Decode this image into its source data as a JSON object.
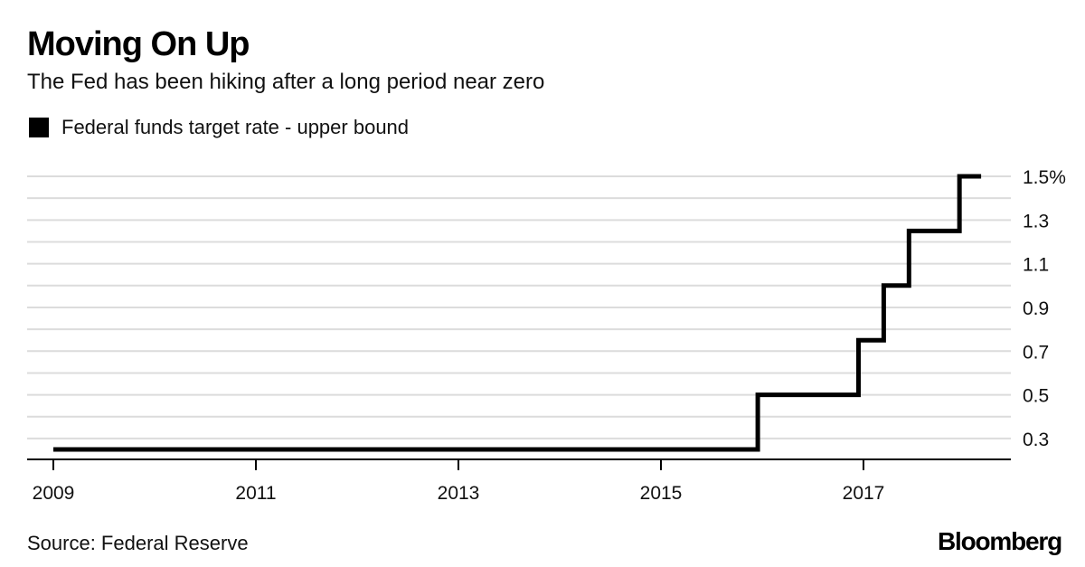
{
  "header": {
    "title": "Moving On Up",
    "subtitle": "The Fed has been hiking after a long period near zero"
  },
  "legend": {
    "label": "Federal funds target rate - upper bound",
    "color": "#000000"
  },
  "footer": {
    "source": "Source: Federal Reserve",
    "logo": "Bloomberg"
  },
  "chart_data": {
    "type": "line",
    "title": "Moving On Up",
    "subtitle": "The Fed has been hiking after a long period near zero",
    "xlabel": "",
    "ylabel": "",
    "step": true,
    "series": [
      {
        "name": "Federal funds target rate - upper bound",
        "color": "#000000",
        "points": [
          {
            "x": "2009-01-01",
            "y": 0.25
          },
          {
            "x": "2015-12-16",
            "y": 0.5
          },
          {
            "x": "2016-12-14",
            "y": 0.75
          },
          {
            "x": "2017-03-15",
            "y": 1.0
          },
          {
            "x": "2017-06-14",
            "y": 1.25
          },
          {
            "x": "2017-12-13",
            "y": 1.5
          },
          {
            "x": "2018-03-01",
            "y": 1.5
          }
        ]
      }
    ],
    "x_ticks": [
      "2009",
      "2011",
      "2013",
      "2015",
      "2017"
    ],
    "y_ticks": [
      {
        "value": 0.3,
        "label": "0.3"
      },
      {
        "value": 0.5,
        "label": "0.5"
      },
      {
        "value": 0.7,
        "label": "0.7"
      },
      {
        "value": 0.9,
        "label": "0.9"
      },
      {
        "value": 1.1,
        "label": "1.1"
      },
      {
        "value": 1.3,
        "label": "1.3"
      },
      {
        "value": 1.5,
        "label": "1.5%"
      }
    ],
    "ylim": [
      0.2,
      1.5
    ],
    "grid": true,
    "legend_position": "top-left"
  }
}
